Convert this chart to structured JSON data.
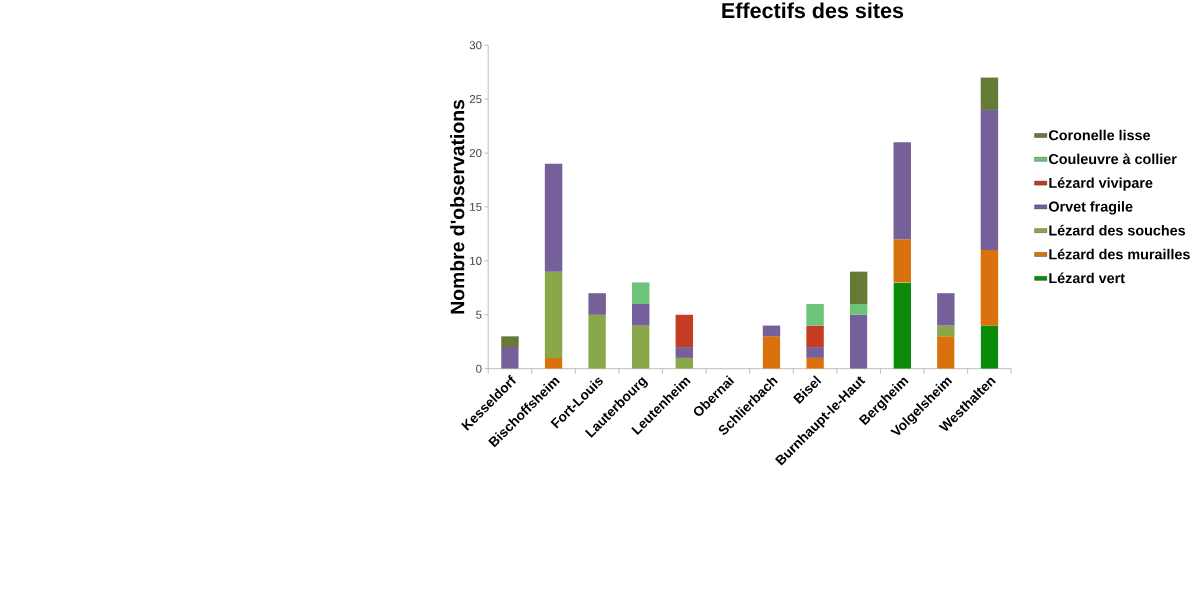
{
  "chart_data": {
    "type": "bar",
    "title": "Effectifs des sites",
    "ylabel": "Nombre d'observations",
    "categories": [
      "Kesseldorf",
      "Bischoffsheim",
      "Fort-Louis",
      "Lauterbourg",
      "Leutenheim",
      "Obernai",
      "Schlierbach",
      "Bisel",
      "Burnhaupt-le-Haut",
      "Bergheim",
      "Volgelsheim",
      "Westhalten"
    ],
    "stacked": true,
    "legend": "right",
    "grid": false,
    "ylim": [
      0,
      30
    ],
    "yticks": [
      0,
      5,
      10,
      15,
      20,
      25,
      30
    ],
    "series": [
      {
        "name": "Lézard vert",
        "color": "#0a8c0a",
        "values": [
          0,
          0,
          0,
          0,
          0,
          0,
          0,
          0,
          0,
          8,
          0,
          4
        ]
      },
      {
        "name": "Lézard des murailles",
        "color": "#d9720c",
        "values": [
          0,
          1,
          0,
          0,
          0,
          0,
          3,
          1,
          0,
          4,
          3,
          7
        ]
      },
      {
        "name": "Lézard des souches",
        "color": "#8aa84a",
        "values": [
          0,
          8,
          5,
          4,
          1,
          0,
          0,
          0,
          0,
          0,
          1,
          0
        ]
      },
      {
        "name": "Orvet fragile",
        "color": "#75609a",
        "values": [
          2,
          10,
          2,
          2,
          1,
          0,
          1,
          1,
          5,
          9,
          3,
          13
        ]
      },
      {
        "name": "Lézard vivipare",
        "color": "#c43c22",
        "values": [
          0,
          0,
          0,
          0,
          3,
          0,
          0,
          2,
          0,
          0,
          0,
          0
        ]
      },
      {
        "name": "Couleuvre à collier",
        "color": "#6cc47a",
        "values": [
          0,
          0,
          0,
          2,
          0,
          0,
          0,
          2,
          1,
          0,
          0,
          0
        ]
      },
      {
        "name": "Coronelle lisse",
        "color": "#647a35",
        "values": [
          1,
          0,
          0,
          0,
          0,
          0,
          0,
          0,
          3,
          0,
          0,
          3
        ]
      }
    ]
  }
}
